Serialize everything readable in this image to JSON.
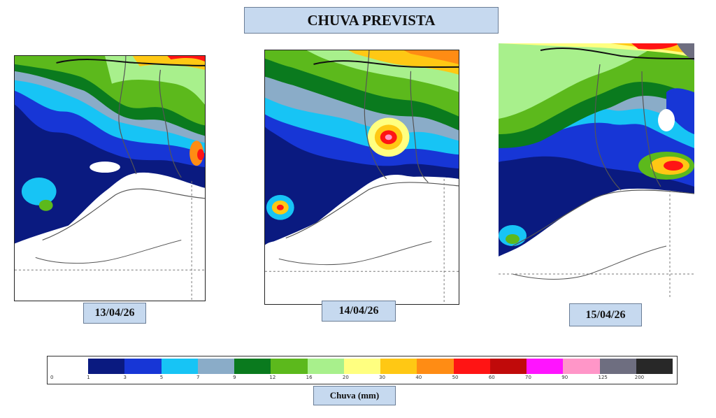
{
  "title": "CHUVA PREVISTA",
  "maps": [
    {
      "date": "13/04/26"
    },
    {
      "date": "14/04/26"
    },
    {
      "date": "15/04/26"
    }
  ],
  "legend": {
    "title": "Chuva (mm)",
    "ticks": [
      "0",
      "1",
      "3",
      "5",
      "7",
      "9",
      "12",
      "16",
      "20",
      "30",
      "40",
      "50",
      "60",
      "70",
      "90",
      "125",
      "200"
    ],
    "colors": [
      "#ffffff",
      "#0a1a80",
      "#1736d6",
      "#17c4f5",
      "#8aacc8",
      "#0a7a1e",
      "#5cb91c",
      "#a8f08c",
      "#ffff80",
      "#ffc814",
      "#ff8c14",
      "#ff1414",
      "#c00a0a",
      "#ff14ff",
      "#ff96c8",
      "#6e6e80",
      "#282828"
    ]
  }
}
